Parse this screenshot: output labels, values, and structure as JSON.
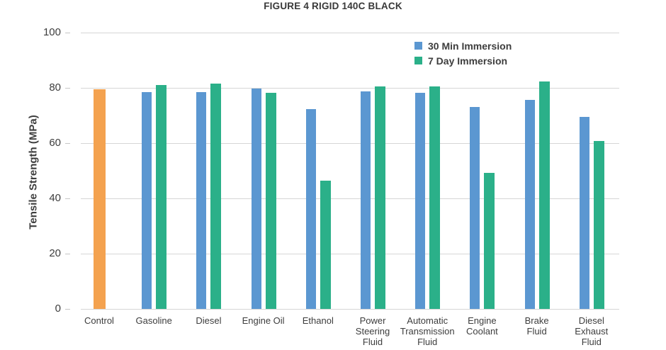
{
  "chart_data": {
    "type": "bar",
    "title": "FIGURE 4 RIGID 140C BLACK",
    "ylabel": "Tensile Strength (MPa)",
    "xlabel": "",
    "ylim": [
      0,
      100
    ],
    "yticks": [
      0,
      20,
      40,
      60,
      80,
      100
    ],
    "grid": true,
    "legend_position": "top-right",
    "legend": [
      "30 Min Immersion",
      "7 Day Immersion"
    ],
    "categories": [
      "Control",
      "Gasoline",
      "Diesel",
      "Engine Oil",
      "Ethanol",
      "Power Steering Fluid",
      "Automatic Transmission Fluid",
      "Engine Coolant",
      "Brake Fluid",
      "Diesel Exhaust Fluid"
    ],
    "category_label_lines": [
      [
        "Control"
      ],
      [
        "Gasoline"
      ],
      [
        "Diesel"
      ],
      [
        "Engine Oil"
      ],
      [
        "Ethanol"
      ],
      [
        "Power",
        "Steering",
        "Fluid"
      ],
      [
        "Automatic",
        "Transmission",
        "Fluid"
      ],
      [
        "Engine",
        "Coolant"
      ],
      [
        "Brake",
        "Fluid"
      ],
      [
        "Diesel",
        "Exhaust",
        "Fluid"
      ]
    ],
    "series": [
      {
        "name": "Control",
        "color": "#f4a24f",
        "in_legend": false,
        "values": [
          79.5,
          null,
          null,
          null,
          null,
          null,
          null,
          null,
          null,
          null
        ]
      },
      {
        "name": "30 Min Immersion",
        "color": "#5b97d1",
        "in_legend": true,
        "values": [
          null,
          78.4,
          78.5,
          79.8,
          72.4,
          78.7,
          78.3,
          73.2,
          75.7,
          69.5
        ]
      },
      {
        "name": "7 Day Immersion",
        "color": "#2bb089",
        "in_legend": true,
        "values": [
          null,
          81.0,
          81.5,
          78.3,
          46.3,
          80.6,
          80.6,
          49.3,
          82.3,
          60.7
        ]
      }
    ]
  },
  "colors": {
    "control_bar": "#f4a24f",
    "series_30min": "#5b97d1",
    "series_7day": "#2bb089",
    "gridline": "#d6d6d6",
    "text": "#3d3d3d"
  }
}
